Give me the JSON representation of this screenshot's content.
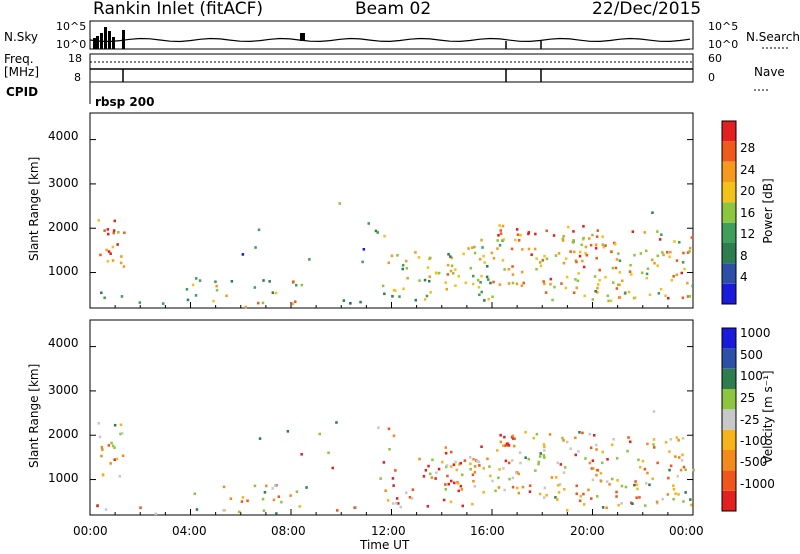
{
  "header": {
    "station": "Rankin Inlet (fitACF)",
    "beam": "Beam 02",
    "date": "22/Dec/2015"
  },
  "top_panels": {
    "nsky_label": "N.Sky",
    "nsearch_label": "N.Search",
    "nsky_ticks": [
      "10^5",
      "10^0"
    ],
    "nsearch_ticks": [
      "10^5",
      "10^0"
    ],
    "freq_label": "Freq.",
    "freq_unit": "[MHz]",
    "freq_ticks": [
      "18",
      "8"
    ],
    "nave_label": "Nave",
    "nave_ticks": [
      "60",
      "0"
    ],
    "cpid_label": "CPID",
    "cpid_value": "rbsp 200"
  },
  "colors": {
    "power": [
      "#1a1adb",
      "#2c4fa8",
      "#2e7d4f",
      "#3f9e5a",
      "#8cc63f",
      "#f2c21b",
      "#f59a1c",
      "#ef5a1a",
      "#e32020"
    ],
    "velocity": [
      "#e32020",
      "#f0551c",
      "#f28a1c",
      "#f5b31c",
      "#c8c8c8",
      "#8cc63f",
      "#2e7d4f",
      "#2c4fa8",
      "#1a1adb"
    ]
  },
  "chart_data": [
    {
      "type": "heatmap",
      "name": "power",
      "ylabel": "Slant Range [km]",
      "yticks": [
        "1000",
        "2000",
        "3000",
        "4000"
      ],
      "ylim": [
        200,
        4600
      ],
      "xlim": [
        0,
        24
      ],
      "colorbar": {
        "label": "Power [dB]",
        "ticks": [
          "4",
          "8",
          "12",
          "16",
          "20",
          "24",
          "28"
        ],
        "range": [
          0,
          32
        ]
      }
    },
    {
      "type": "heatmap",
      "name": "velocity",
      "ylabel": "Slant Range [km]",
      "yticks": [
        "1000",
        "2000",
        "3000",
        "4000"
      ],
      "ylim": [
        200,
        4600
      ],
      "xlim": [
        0,
        24
      ],
      "xticks": [
        "00:00",
        "04:00",
        "08:00",
        "12:00",
        "16:00",
        "20:00",
        "00:00"
      ],
      "xlabel": "Time UT",
      "colorbar": {
        "label": "Velocity [m s⁻¹]",
        "ticks": [
          "-1000",
          "-500",
          "-100",
          "-25",
          "25",
          "100",
          "500",
          "1000"
        ]
      }
    }
  ]
}
